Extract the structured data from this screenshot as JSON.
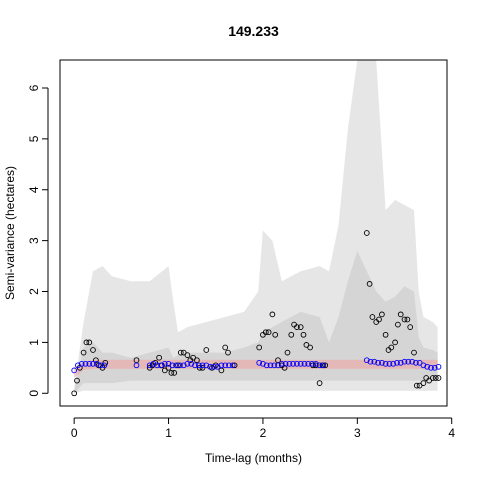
{
  "chart_data": {
    "type": "scatter",
    "title": "149.233",
    "xlabel": "Time-lag (months)",
    "ylabel": "Semi-variance (hectares)",
    "xlim": [
      -0.15,
      3.95
    ],
    "ylim": [
      -0.25,
      6.55
    ],
    "xticks": [
      0,
      1,
      2,
      3,
      4
    ],
    "yticks": [
      0,
      1,
      2,
      3,
      4,
      5,
      6
    ],
    "colors": {
      "outer_band": "#e6e6e6",
      "middle_band": "#cfcfcf",
      "inner_band": "#bbbbbb",
      "model_band": "#f2a0a0",
      "empirical_points": "#000000",
      "model_points": "#0000ff"
    },
    "bands": {
      "x": [
        0.0,
        0.1,
        0.2,
        0.3,
        0.4,
        0.6,
        0.8,
        1.0,
        1.05,
        1.1,
        1.2,
        1.4,
        1.6,
        1.8,
        1.95,
        2.0,
        2.1,
        2.2,
        2.4,
        2.6,
        2.7,
        2.8,
        2.9,
        3.0,
        3.05,
        3.1,
        3.2,
        3.3,
        3.4,
        3.5,
        3.6,
        3.65,
        3.7,
        3.8,
        3.85
      ],
      "outer_upper": [
        0.1,
        1.4,
        2.4,
        2.5,
        2.3,
        2.2,
        2.2,
        2.5,
        1.8,
        1.2,
        1.3,
        1.4,
        1.5,
        1.6,
        2.0,
        3.2,
        3.0,
        2.2,
        2.4,
        2.5,
        2.4,
        3.3,
        5.2,
        6.55,
        6.55,
        6.55,
        6.55,
        3.6,
        3.8,
        3.7,
        3.6,
        2.0,
        1.5,
        1.4,
        1.3
      ],
      "outer_lower": [
        0.0,
        0.05,
        0.05,
        0.05,
        0.05,
        0.05,
        0.05,
        0.05,
        0.05,
        0.05,
        0.05,
        0.05,
        0.05,
        0.05,
        0.05,
        0.05,
        0.05,
        0.05,
        0.05,
        0.05,
        0.05,
        0.05,
        0.05,
        0.05,
        0.05,
        0.05,
        0.05,
        0.05,
        0.05,
        0.05,
        0.05,
        0.05,
        0.05,
        0.05,
        0.05
      ],
      "middle_upper": [
        0.05,
        0.9,
        1.0,
        0.8,
        0.8,
        0.7,
        0.8,
        0.9,
        0.7,
        0.75,
        0.8,
        0.8,
        0.8,
        0.9,
        1.0,
        1.2,
        1.3,
        1.4,
        1.6,
        1.5,
        1.0,
        1.5,
        2.2,
        2.8,
        2.6,
        2.4,
        2.0,
        1.8,
        1.9,
        2.1,
        2.0,
        1.1,
        0.9,
        0.85,
        0.8
      ],
      "middle_lower": [
        0.0,
        0.2,
        0.2,
        0.2,
        0.2,
        0.25,
        0.25,
        0.25,
        0.25,
        0.25,
        0.25,
        0.25,
        0.25,
        0.25,
        0.25,
        0.25,
        0.25,
        0.25,
        0.25,
        0.25,
        0.25,
        0.25,
        0.25,
        0.25,
        0.25,
        0.25,
        0.25,
        0.25,
        0.25,
        0.25,
        0.25,
        0.25,
        0.25,
        0.25,
        0.25
      ],
      "model_upper": [
        0.5,
        0.62,
        0.66,
        0.66,
        0.66,
        0.66,
        0.66,
        0.66,
        0.66,
        0.66,
        0.66,
        0.66,
        0.66,
        0.66,
        0.66,
        0.66,
        0.66,
        0.66,
        0.66,
        0.66,
        0.66,
        0.66,
        0.66,
        0.66,
        0.66,
        0.66,
        0.66,
        0.66,
        0.66,
        0.66,
        0.66,
        0.66,
        0.66,
        0.66,
        0.66
      ],
      "model_lower": [
        0.3,
        0.46,
        0.48,
        0.48,
        0.48,
        0.48,
        0.48,
        0.48,
        0.48,
        0.48,
        0.48,
        0.48,
        0.48,
        0.48,
        0.48,
        0.48,
        0.48,
        0.48,
        0.48,
        0.48,
        0.48,
        0.48,
        0.48,
        0.48,
        0.48,
        0.48,
        0.48,
        0.48,
        0.48,
        0.48,
        0.48,
        0.48,
        0.48,
        0.48,
        0.48
      ]
    },
    "empirical": {
      "x": [
        0.0,
        0.03,
        0.06,
        0.1,
        0.13,
        0.16,
        0.2,
        0.23,
        0.26,
        0.3,
        0.33,
        0.66,
        0.8,
        0.83,
        0.86,
        0.9,
        0.93,
        0.96,
        1.0,
        1.03,
        1.06,
        1.1,
        1.13,
        1.16,
        1.2,
        1.23,
        1.26,
        1.3,
        1.33,
        1.36,
        1.4,
        1.46,
        1.5,
        1.56,
        1.6,
        1.63,
        1.7,
        1.96,
        2.0,
        2.03,
        2.06,
        2.1,
        2.13,
        2.16,
        2.2,
        2.23,
        2.26,
        2.3,
        2.33,
        2.36,
        2.4,
        2.43,
        2.46,
        2.5,
        2.53,
        2.56,
        2.6,
        2.63,
        2.66,
        3.1,
        3.13,
        3.16,
        3.2,
        3.23,
        3.26,
        3.3,
        3.33,
        3.36,
        3.4,
        3.43,
        3.46,
        3.5,
        3.53,
        3.56,
        3.6,
        3.63,
        3.66,
        3.7,
        3.73,
        3.76,
        3.8,
        3.83,
        3.86
      ],
      "y": [
        0.0,
        0.25,
        0.5,
        0.8,
        1.0,
        1.0,
        0.85,
        0.65,
        0.55,
        0.5,
        0.6,
        0.65,
        0.5,
        0.55,
        0.6,
        0.7,
        0.55,
        0.45,
        0.5,
        0.4,
        0.4,
        0.55,
        0.8,
        0.8,
        0.75,
        0.65,
        0.7,
        0.65,
        0.5,
        0.5,
        0.85,
        0.5,
        0.55,
        0.45,
        0.9,
        0.8,
        0.55,
        0.9,
        1.15,
        1.2,
        1.2,
        1.55,
        1.15,
        0.65,
        0.55,
        0.5,
        0.8,
        1.15,
        1.35,
        1.3,
        1.3,
        1.15,
        0.95,
        0.9,
        0.55,
        0.55,
        0.2,
        0.55,
        0.55,
        3.15,
        2.15,
        1.5,
        1.4,
        1.45,
        1.55,
        1.15,
        0.85,
        0.9,
        1.0,
        1.35,
        1.55,
        1.45,
        1.45,
        1.3,
        0.8,
        0.15,
        0.15,
        0.2,
        0.3,
        0.25,
        0.3,
        0.3,
        0.3
      ]
    },
    "model": {
      "x": [
        0.0,
        0.04,
        0.08,
        0.12,
        0.16,
        0.2,
        0.24,
        0.28,
        0.32,
        0.66,
        0.8,
        0.84,
        0.88,
        0.92,
        0.96,
        1.0,
        1.04,
        1.08,
        1.12,
        1.16,
        1.2,
        1.24,
        1.28,
        1.32,
        1.36,
        1.4,
        1.44,
        1.48,
        1.52,
        1.56,
        1.6,
        1.64,
        1.68,
        1.96,
        2.0,
        2.04,
        2.08,
        2.12,
        2.16,
        2.2,
        2.24,
        2.28,
        2.32,
        2.36,
        2.4,
        2.44,
        2.48,
        2.52,
        2.56,
        2.6,
        2.64,
        3.1,
        3.14,
        3.18,
        3.22,
        3.26,
        3.3,
        3.34,
        3.38,
        3.42,
        3.46,
        3.5,
        3.54,
        3.58,
        3.62,
        3.66,
        3.7,
        3.74,
        3.78,
        3.82,
        3.86
      ],
      "y": [
        0.45,
        0.55,
        0.58,
        0.58,
        0.58,
        0.58,
        0.58,
        0.55,
        0.55,
        0.55,
        0.55,
        0.58,
        0.55,
        0.55,
        0.58,
        0.58,
        0.55,
        0.55,
        0.55,
        0.55,
        0.58,
        0.58,
        0.55,
        0.55,
        0.55,
        0.55,
        0.52,
        0.52,
        0.52,
        0.55,
        0.55,
        0.55,
        0.55,
        0.6,
        0.58,
        0.55,
        0.55,
        0.55,
        0.55,
        0.58,
        0.58,
        0.58,
        0.58,
        0.58,
        0.58,
        0.58,
        0.58,
        0.58,
        0.58,
        0.55,
        0.55,
        0.65,
        0.62,
        0.62,
        0.6,
        0.6,
        0.58,
        0.58,
        0.58,
        0.6,
        0.6,
        0.62,
        0.62,
        0.62,
        0.6,
        0.6,
        0.55,
        0.52,
        0.5,
        0.5,
        0.52
      ]
    }
  }
}
